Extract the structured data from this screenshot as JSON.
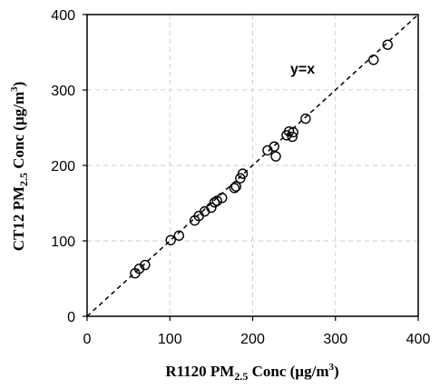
{
  "chart_data": {
    "type": "scatter",
    "xlabel": {
      "pre": "R1120 PM",
      "sub": "2.5",
      "mid": " Conc (µg/m",
      "sup": "3",
      "post": ")"
    },
    "ylabel": {
      "pre": "CT12 PM",
      "sub": "2.5",
      "mid": " Conc (µg/m",
      "sup": "3",
      "post": ")"
    },
    "xlim": [
      0,
      400
    ],
    "ylim": [
      0,
      400
    ],
    "xticks": [
      "0",
      "100",
      "200",
      "300",
      "400"
    ],
    "yticks": [
      "0",
      "100",
      "200",
      "300",
      "400"
    ],
    "grid": true,
    "marker": "open-circle",
    "reference_line": {
      "label": "y=x",
      "style": "dashed",
      "slope": 1,
      "intercept": 0
    },
    "points": [
      {
        "x": 58,
        "y": 57
      },
      {
        "x": 63,
        "y": 63
      },
      {
        "x": 70,
        "y": 68
      },
      {
        "x": 101,
        "y": 101
      },
      {
        "x": 111,
        "y": 107
      },
      {
        "x": 130,
        "y": 127
      },
      {
        "x": 135,
        "y": 133
      },
      {
        "x": 142,
        "y": 139
      },
      {
        "x": 150,
        "y": 144
      },
      {
        "x": 154,
        "y": 151
      },
      {
        "x": 157,
        "y": 153
      },
      {
        "x": 163,
        "y": 157
      },
      {
        "x": 178,
        "y": 170
      },
      {
        "x": 180,
        "y": 172
      },
      {
        "x": 185,
        "y": 183
      },
      {
        "x": 188,
        "y": 189
      },
      {
        "x": 218,
        "y": 220
      },
      {
        "x": 226,
        "y": 225
      },
      {
        "x": 228,
        "y": 212
      },
      {
        "x": 241,
        "y": 240
      },
      {
        "x": 244,
        "y": 245
      },
      {
        "x": 248,
        "y": 238
      },
      {
        "x": 249,
        "y": 244
      },
      {
        "x": 264,
        "y": 262
      },
      {
        "x": 346,
        "y": 340
      },
      {
        "x": 363,
        "y": 360
      }
    ]
  }
}
